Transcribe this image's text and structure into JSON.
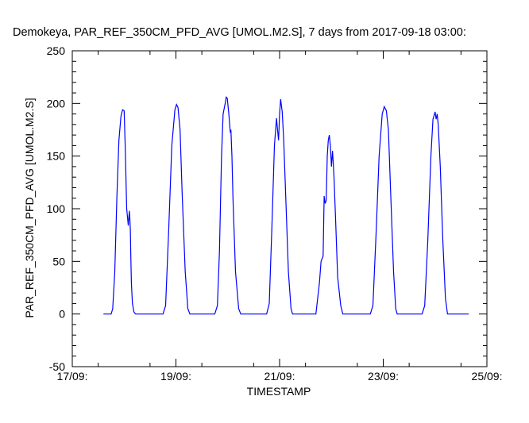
{
  "chart_data": {
    "type": "line",
    "title": "Demokeya, PAR_REF_350CM_PFD_AVG [UMOL.M2.S], 7 days from  2017-09-18 03:00:",
    "xlabel": "TIMESTAMP",
    "ylabel": "PAR_REF_350CM_PFD_AVG [UMOL.M2.S]",
    "xlim": [
      17,
      25
    ],
    "ylim": [
      -50,
      250
    ],
    "x_unit": "day of September 2017",
    "y_ticks": [
      -50,
      0,
      50,
      100,
      150,
      200,
      250
    ],
    "y_tick_labels": [
      "-50",
      "0",
      "50",
      "100",
      "150",
      "200",
      "250"
    ],
    "x_ticks": [
      17,
      19,
      21,
      23,
      25
    ],
    "x_tick_labels": [
      "17/09:",
      "19/09:",
      "21/09:",
      "23/09:",
      "25/09:"
    ],
    "line_color": "#0000ff",
    "series": [
      {
        "name": "PAR_REF_350CM_PFD_AVG",
        "x": [
          17.6,
          17.75,
          17.78,
          17.82,
          17.86,
          17.9,
          17.94,
          17.97,
          18.0,
          18.02,
          18.05,
          18.08,
          18.1,
          18.11,
          18.12,
          18.13,
          18.14,
          18.16,
          18.19,
          18.22,
          18.25,
          18.3,
          18.7,
          18.75,
          18.8,
          18.86,
          18.92,
          18.98,
          19.01,
          19.04,
          19.08,
          19.12,
          19.18,
          19.23,
          19.27,
          19.3,
          19.7,
          19.75,
          19.8,
          19.84,
          19.88,
          19.91,
          19.93,
          19.95,
          19.97,
          19.99,
          20.02,
          20.05,
          20.06,
          20.08,
          20.1,
          20.15,
          20.21,
          20.25,
          20.3,
          20.7,
          20.75,
          20.8,
          20.85,
          20.9,
          20.94,
          20.96,
          20.98,
          21.0,
          21.02,
          21.05,
          21.08,
          21.12,
          21.17,
          21.22,
          21.25,
          21.3,
          21.7,
          21.77,
          21.8,
          21.84,
          21.86,
          21.88,
          21.9,
          21.92,
          21.94,
          21.96,
          21.98,
          22.0,
          22.02,
          22.03,
          22.05,
          22.08,
          22.12,
          22.18,
          22.22,
          22.25,
          22.3,
          22.7,
          22.75,
          22.8,
          22.86,
          22.92,
          22.98,
          23.02,
          23.06,
          23.1,
          23.14,
          23.2,
          23.24,
          23.27,
          23.3,
          23.7,
          23.75,
          23.8,
          23.86,
          23.92,
          23.96,
          24.0,
          24.02,
          24.04,
          24.06,
          24.1,
          24.15,
          24.2,
          24.24,
          24.27,
          24.3,
          24.65
        ],
        "y": [
          0,
          0,
          5,
          40,
          110,
          165,
          188,
          194,
          193,
          160,
          100,
          84,
          98,
          92,
          80,
          55,
          30,
          10,
          2,
          0,
          0,
          0,
          0,
          0,
          8,
          80,
          160,
          194,
          199,
          196,
          175,
          115,
          40,
          5,
          0,
          0,
          0,
          0,
          8,
          60,
          150,
          190,
          195,
          200,
          206,
          205,
          190,
          172,
          175,
          150,
          110,
          40,
          5,
          0,
          0,
          0,
          0,
          10,
          80,
          160,
          186,
          175,
          165,
          190,
          204,
          192,
          165,
          110,
          40,
          5,
          0,
          0,
          0,
          30,
          50,
          55,
          112,
          105,
          108,
          150,
          165,
          170,
          160,
          140,
          155,
          148,
          130,
          90,
          35,
          8,
          0,
          0,
          0,
          0,
          0,
          8,
          75,
          150,
          190,
          197,
          193,
          175,
          120,
          40,
          5,
          0,
          0,
          0,
          0,
          8,
          70,
          150,
          185,
          192,
          185,
          190,
          180,
          140,
          70,
          15,
          0,
          0,
          0,
          0
        ]
      }
    ]
  }
}
